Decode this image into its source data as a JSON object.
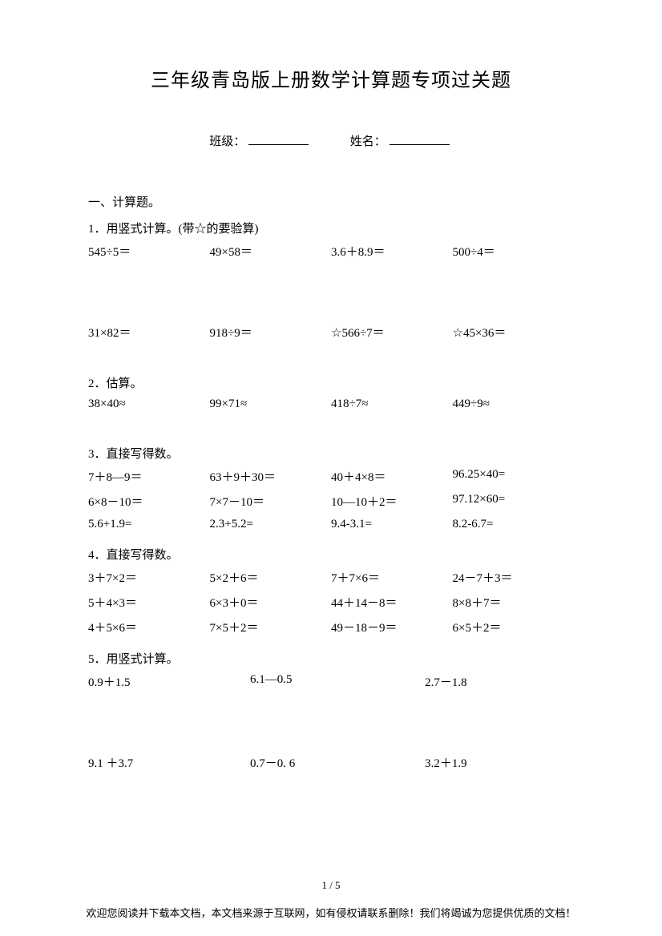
{
  "title": "三年级青岛版上册数学计算题专项过关题",
  "info": {
    "class_label": "班级：",
    "name_label": "姓名："
  },
  "section1": {
    "header": "一、计算题。",
    "q1": {
      "header": "1．用竖式计算。(带☆的要验算)",
      "row1": [
        "545÷5＝",
        "49×58＝",
        "3.6＋8.9＝",
        "500÷4＝"
      ],
      "row2": [
        "31×82＝",
        "918÷9＝",
        "☆566÷7＝",
        "☆45×36＝"
      ]
    },
    "q2": {
      "header": "2．估算。",
      "row1": [
        "38×40≈",
        "99×71≈",
        "418÷7≈",
        "449÷9≈"
      ]
    },
    "q3": {
      "header": "3．直接写得数。",
      "row1": [
        "7＋8—9＝",
        "63＋9＋30＝",
        "40＋4×8＝",
        "96.25×40="
      ],
      "row2": [
        "6×8－10＝",
        "7×7－10＝",
        "10—10＋2＝",
        "97.12×60="
      ],
      "row3": [
        "5.6+1.9=",
        "2.3+5.2=",
        "9.4-3.1=",
        "8.2-6.7="
      ]
    },
    "q4": {
      "header": "4．直接写得数。",
      "row1": [
        "3＋7×2＝",
        "5×2＋6＝",
        "7＋7×6＝",
        "24－7＋3＝"
      ],
      "row2": [
        "5＋4×3＝",
        "6×3＋0＝",
        "44＋14－8＝",
        "8×8＋7＝"
      ],
      "row3": [
        "4＋5×6＝",
        "7×5＋2＝",
        "49－18－9＝",
        "6×5＋2＝"
      ]
    },
    "q5": {
      "header": "5．用竖式计算。",
      "row1": [
        "0.9＋1.5",
        "6.1—0.5",
        "2.7－1.8"
      ],
      "row2": [
        "9.1 ＋3.7",
        "0.7－0. 6",
        "3.2＋1.9"
      ]
    }
  },
  "page_number": "1 / 5",
  "footer": "欢迎您阅读并下载本文档，本文档来源于互联网，如有侵权请联系删除！我们将竭诚为您提供优质的文档！"
}
